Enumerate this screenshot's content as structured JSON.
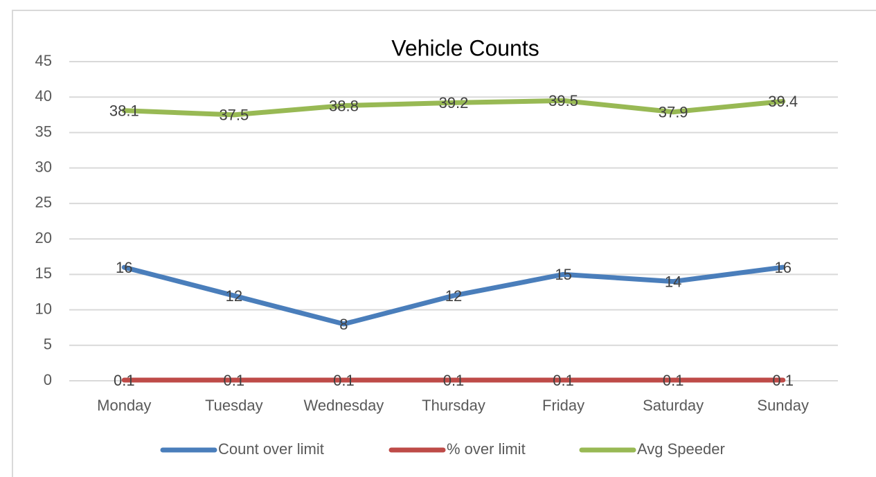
{
  "chart_data": {
    "type": "line",
    "title": "Vehicle Counts",
    "categories": [
      "Monday",
      "Tuesday",
      "Wednesday",
      "Thursday",
      "Friday",
      "Saturday",
      "Sunday"
    ],
    "series": [
      {
        "name": "Count over limit",
        "color": "#4a7ebb",
        "values": [
          16,
          12,
          8,
          12,
          15,
          14,
          16
        ]
      },
      {
        "name": "% over limit",
        "color": "#be4b48",
        "values": [
          0.1,
          0.1,
          0.1,
          0.1,
          0.1,
          0.1,
          0.1
        ]
      },
      {
        "name": "Avg Speeder",
        "color": "#98b954",
        "values": [
          38.1,
          37.5,
          38.8,
          39.2,
          39.5,
          37.9,
          39.4
        ]
      }
    ],
    "ylim": [
      0,
      45
    ],
    "yticks": [
      0,
      5,
      10,
      15,
      20,
      25,
      30,
      35,
      40,
      45
    ],
    "grid": true,
    "legend": "bottom"
  }
}
